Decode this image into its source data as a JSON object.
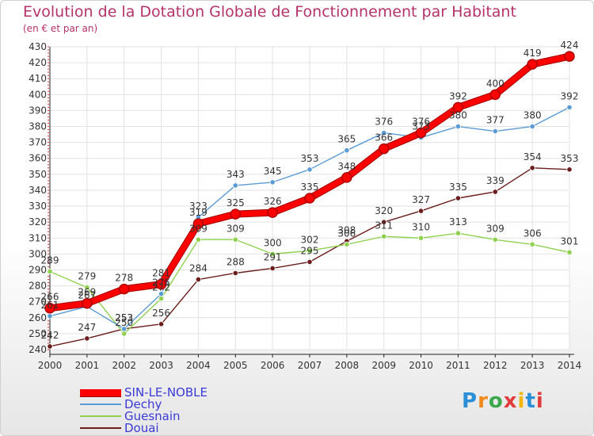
{
  "header": {
    "title": "Evolution de la Dotation Globale de Fonctionnement par Habitant",
    "subtitle": "(en € et par an)"
  },
  "chart_data": {
    "type": "line",
    "title": "Evolution de la Dotation Globale de Fonctionnement par Habitant",
    "subtitle": "(en € et par an)",
    "xlabel": "",
    "ylabel": "",
    "x": [
      "2000",
      "2001",
      "2002",
      "2003",
      "2004",
      "2005",
      "2006",
      "2007",
      "2008",
      "2009",
      "2010",
      "2011",
      "2012",
      "2013",
      "2014"
    ],
    "ylim": [
      240,
      430
    ],
    "yticks": [
      240,
      250,
      260,
      270,
      280,
      290,
      300,
      310,
      320,
      330,
      340,
      350,
      360,
      370,
      380,
      390,
      400,
      410,
      420,
      430
    ],
    "grid": true,
    "legend_position": "bottom-left",
    "series": [
      {
        "name": "Douai",
        "color": "#6b1c1c",
        "values": [
          242,
          247,
          253,
          256,
          284,
          288,
          291,
          295,
          308,
          320,
          327,
          335,
          339,
          354,
          353
        ]
      },
      {
        "name": "Guesnain",
        "color": "#8fd14f",
        "values": [
          289,
          279,
          250,
          272,
          309,
          309,
          300,
          302,
          306,
          311,
          310,
          313,
          309,
          306,
          301
        ]
      },
      {
        "name": "Dechy",
        "color": "#5a9bd5",
        "values": [
          261,
          267,
          253,
          275,
          323,
          343,
          345,
          353,
          365,
          376,
          373,
          380,
          377,
          380,
          392
        ]
      },
      {
        "name": "SIN-LE-NOBLE",
        "color": "#ff0000",
        "values": [
          266,
          269,
          278,
          281,
          319,
          325,
          326,
          335,
          348,
          366,
          376,
          392,
          400,
          419,
          424
        ]
      }
    ]
  },
  "legend": [
    {
      "name": "SIN-LE-NOBLE",
      "color": "#ff0000"
    },
    {
      "name": "Dechy",
      "color": "#5a9bd5"
    },
    {
      "name": "Guesnain",
      "color": "#8fd14f"
    },
    {
      "name": "Douai",
      "color": "#6b1c1c"
    }
  ],
  "logo": {
    "letters": [
      "P",
      "r",
      "o",
      "x",
      "i",
      "t",
      "i"
    ],
    "colors": [
      "#2a8fd6",
      "#f08a1c",
      "#3aa84a",
      "#e23b3b",
      "#f2b705",
      "#2a8fd6",
      "#e23b3b"
    ]
  }
}
